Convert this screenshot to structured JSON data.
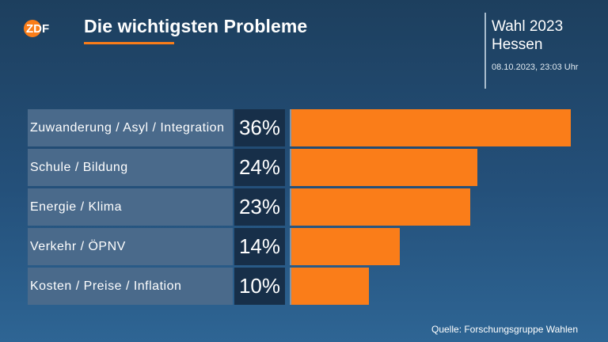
{
  "header": {
    "logo_text": "ZDF",
    "title": "Die wichtigsten Probleme",
    "election_line1": "Wahl 2023",
    "election_line2": "Hessen",
    "timestamp": "08.10.2023, 23:03 Uhr"
  },
  "colors": {
    "accent": "#fa7d19",
    "label_bg": "#4a6a8b",
    "value_bg": "#172f49",
    "background_top": "#1d3f5e",
    "background_bottom": "#2e6594"
  },
  "chart_data": {
    "type": "bar",
    "orientation": "horizontal",
    "title": "Die wichtigsten Probleme",
    "unit": "%",
    "categories": [
      "Zuwanderung / Asyl / Integration",
      "Schule / Bildung",
      "Energie / Klima",
      "Verkehr / ÖPNV",
      "Kosten / Preise / Inflation"
    ],
    "values": [
      36,
      24,
      23,
      14,
      10
    ],
    "value_labels": [
      "36%",
      "24%",
      "23%",
      "14%",
      "10%"
    ],
    "xlim": [
      0,
      36
    ]
  },
  "footer": {
    "source": "Quelle: Forschungsgruppe Wahlen"
  }
}
